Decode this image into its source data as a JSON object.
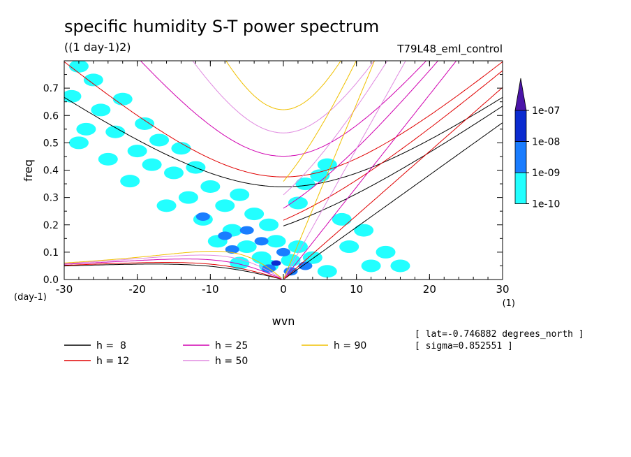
{
  "chart_data": {
    "type": "heatmap",
    "title": "specific humidity S-T power spectrum",
    "subtitle": "((1 day-1)2)",
    "run_label": "T79L48_eml_control",
    "xlabel": "wvn",
    "ylabel": "freq",
    "x_unit": "(1)",
    "y_unit": "(day-1)",
    "xlim": [
      -30,
      30
    ],
    "ylim": [
      0,
      0.8
    ],
    "x_ticks": [
      "-30",
      "-20",
      "-10",
      "0",
      "10",
      "20",
      "30"
    ],
    "y_ticks": [
      "0.0",
      "0.1",
      "0.2",
      "0.3",
      "0.4",
      "0.5",
      "0.6",
      "0.7"
    ],
    "colorbar": {
      "levels": [
        "1e-10",
        "1e-09",
        "1e-08",
        "1e-07"
      ],
      "colors": [
        "#22ffff",
        "#1a7dff",
        "#0b2bd0",
        "#4a14a8"
      ]
    },
    "blobs": [
      {
        "k": -28,
        "f": 0.78,
        "level": 0
      },
      {
        "k": -26,
        "f": 0.73,
        "level": 0
      },
      {
        "k": -29,
        "f": 0.67,
        "level": 0
      },
      {
        "k": -25,
        "f": 0.62,
        "level": 0
      },
      {
        "k": -22,
        "f": 0.66,
        "level": 0
      },
      {
        "k": -27,
        "f": 0.55,
        "level": 0
      },
      {
        "k": -23,
        "f": 0.54,
        "level": 0
      },
      {
        "k": -19,
        "f": 0.57,
        "level": 0
      },
      {
        "k": -17,
        "f": 0.51,
        "level": 0
      },
      {
        "k": -20,
        "f": 0.47,
        "level": 0
      },
      {
        "k": -14,
        "f": 0.48,
        "level": 0
      },
      {
        "k": -18,
        "f": 0.42,
        "level": 0
      },
      {
        "k": -15,
        "f": 0.39,
        "level": 0
      },
      {
        "k": -21,
        "f": 0.36,
        "level": 0
      },
      {
        "k": -12,
        "f": 0.41,
        "level": 0
      },
      {
        "k": -10,
        "f": 0.34,
        "level": 0
      },
      {
        "k": -13,
        "f": 0.3,
        "level": 0
      },
      {
        "k": -16,
        "f": 0.27,
        "level": 0
      },
      {
        "k": -8,
        "f": 0.27,
        "level": 0
      },
      {
        "k": -6,
        "f": 0.31,
        "level": 0
      },
      {
        "k": -11,
        "f": 0.22,
        "level": 0
      },
      {
        "k": -4,
        "f": 0.24,
        "level": 0
      },
      {
        "k": -7,
        "f": 0.18,
        "level": 0
      },
      {
        "k": -2,
        "f": 0.2,
        "level": 0
      },
      {
        "k": -9,
        "f": 0.14,
        "level": 0
      },
      {
        "k": -5,
        "f": 0.12,
        "level": 0
      },
      {
        "k": -1,
        "f": 0.14,
        "level": 0
      },
      {
        "k": 2,
        "f": 0.12,
        "level": 0
      },
      {
        "k": -3,
        "f": 0.08,
        "level": 0
      },
      {
        "k": 1,
        "f": 0.07,
        "level": 0
      },
      {
        "k": 4,
        "f": 0.08,
        "level": 0
      },
      {
        "k": -6,
        "f": 0.06,
        "level": 0
      },
      {
        "k": 3,
        "f": 0.35,
        "level": 0
      },
      {
        "k": 5,
        "f": 0.38,
        "level": 0
      },
      {
        "k": 6,
        "f": 0.42,
        "level": 0
      },
      {
        "k": 2,
        "f": 0.28,
        "level": 0
      },
      {
        "k": 8,
        "f": 0.22,
        "level": 0
      },
      {
        "k": 11,
        "f": 0.18,
        "level": 0
      },
      {
        "k": 9,
        "f": 0.12,
        "level": 0
      },
      {
        "k": 14,
        "f": 0.1,
        "level": 0
      },
      {
        "k": 12,
        "f": 0.05,
        "level": 0
      },
      {
        "k": 16,
        "f": 0.05,
        "level": 0
      },
      {
        "k": -24,
        "f": 0.44,
        "level": 0
      },
      {
        "k": -28,
        "f": 0.5,
        "level": 0
      },
      {
        "k": -2,
        "f": 0.05,
        "level": 0
      },
      {
        "k": 6,
        "f": 0.03,
        "level": 0
      },
      {
        "k": -8,
        "f": 0.16,
        "level": 1
      },
      {
        "k": -5,
        "f": 0.18,
        "level": 1
      },
      {
        "k": -3,
        "f": 0.14,
        "level": 1
      },
      {
        "k": -7,
        "f": 0.11,
        "level": 1
      },
      {
        "k": 0,
        "f": 0.1,
        "level": 1
      },
      {
        "k": -2,
        "f": 0.04,
        "level": 1
      },
      {
        "k": 1,
        "f": 0.03,
        "level": 1
      },
      {
        "k": 3,
        "f": 0.05,
        "level": 1
      },
      {
        "k": -11,
        "f": 0.23,
        "level": 1
      },
      {
        "k": -1,
        "f": 0.06,
        "level": 2
      }
    ],
    "dispersion_curves": [
      {
        "h": 8,
        "color": "#000000"
      },
      {
        "h": 12,
        "color": "#e00000"
      },
      {
        "h": 25,
        "color": "#d000b0"
      },
      {
        "h": 50,
        "color": "#e08ae0"
      },
      {
        "h": 90,
        "color": "#f0c000"
      }
    ],
    "legend": [
      "h =  8",
      "h = 12",
      "h = 25",
      "h = 50",
      "h = 90"
    ]
  },
  "info": {
    "lat": "[ lat=-0.746882 degrees_north ]",
    "sigma": "[ sigma=0.852551 ]"
  }
}
